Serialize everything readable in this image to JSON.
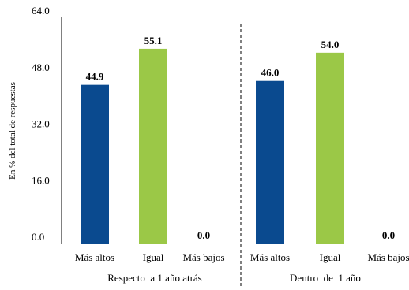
{
  "chart_data": {
    "type": "bar",
    "ylabel": "En % del total de respuestas",
    "ylim": [
      0,
      64
    ],
    "yticks": [
      "64.0",
      "48.0",
      "32.0",
      "16.0",
      "0.0"
    ],
    "ytick_values": [
      64,
      48,
      32,
      16,
      0
    ],
    "grid": false,
    "legend": "none",
    "groups": [
      {
        "name": "Respecto  a 1 año atrás",
        "categories": [
          "Más altos",
          "Igual",
          "Más bajos"
        ],
        "values": [
          44.9,
          55.1,
          0.0
        ],
        "labels": [
          "44.9",
          "55.1",
          "0.0"
        ]
      },
      {
        "name": "Dentro  de  1 año",
        "categories": [
          "Más altos",
          "Igual",
          "Más bajos"
        ],
        "values": [
          46.0,
          54.0,
          0.0
        ],
        "labels": [
          "46.0",
          "54.0",
          "0.0"
        ]
      }
    ],
    "colors": [
      "#0a4a8f",
      "#9bc847",
      "#9bc847"
    ]
  }
}
